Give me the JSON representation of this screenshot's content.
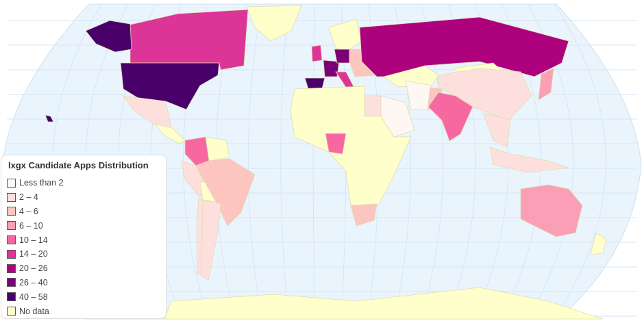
{
  "legend": {
    "title": "Ixgx Candidate Apps Distribution",
    "items": [
      {
        "label": "Less than 2",
        "color": "#fff7f3"
      },
      {
        "label": "2 – 4",
        "color": "#fde0dd"
      },
      {
        "label": "4 – 6",
        "color": "#fcc5c0"
      },
      {
        "label": "6 – 10",
        "color": "#fa9fb5"
      },
      {
        "label": "10 – 14",
        "color": "#f768a1"
      },
      {
        "label": "14 – 20",
        "color": "#dd3497"
      },
      {
        "label": "20 – 26",
        "color": "#ae017e"
      },
      {
        "label": "26 – 40",
        "color": "#7a0177"
      },
      {
        "label": "40 – 58",
        "color": "#49006a"
      },
      {
        "label": "No data",
        "color": "#ffffcc"
      }
    ]
  },
  "colors": {
    "ocean": "#eaf4fc",
    "grid": "#d6e6f4",
    "border": "#e0dcb0"
  },
  "countries": {
    "United States": "40 – 58",
    "Alaska": "40 – 58",
    "Canada": "14 – 20",
    "Greenland": "No data",
    "Mexico": "2 – 4",
    "Central America": "No data",
    "Colombia": "10 – 14",
    "Venezuela": "No data",
    "Brazil": "4 – 6",
    "Peru": "2 – 4",
    "Argentina": "2 – 4",
    "Chile": "2 – 4",
    "Bolivia": "No data",
    "Spain": "40 – 58",
    "France": "26 – 40",
    "United Kingdom": "14 – 20",
    "Germany": "26 – 40",
    "Italy": "14 – 20",
    "Poland": "4 – 6",
    "Eastern Europe": "4 – 6",
    "Scandinavia": "No data",
    "Russia": "20 – 26",
    "Africa": "No data",
    "Nigeria": "10 – 14",
    "South Africa": "4 – 6",
    "Egypt": "2 – 4",
    "Saudi Arabia": "Less than 2",
    "Iran": "Less than 2",
    "Pakistan": "4 – 6",
    "India": "10 – 14",
    "China": "2 – 4",
    "Mongolia": "No data",
    "Kazakhstan": "No data",
    "Japan": "6 – 10",
    "Southeast Asia": "2 – 4",
    "Indonesia": "2 – 4",
    "Australia": "6 – 10",
    "New Zealand": "No data",
    "Antarctica": "No data",
    "Hawaii": "40 – 58"
  }
}
